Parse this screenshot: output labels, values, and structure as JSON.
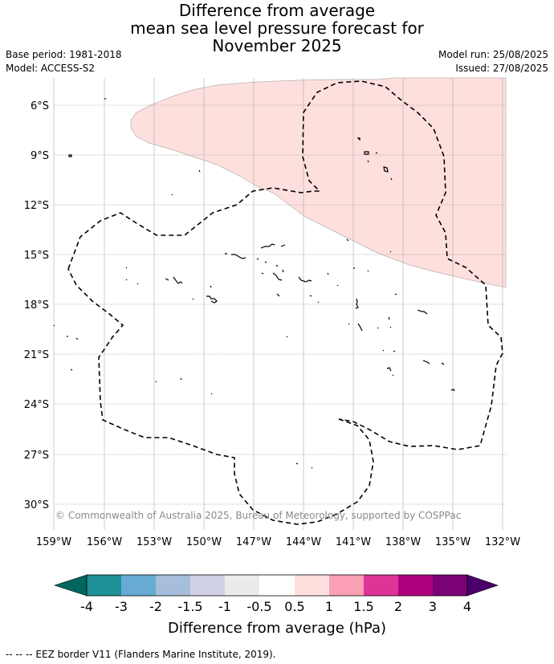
{
  "title": {
    "line1": "Difference from average",
    "line2": "mean sea level pressure forecast for",
    "line3": "November 2025"
  },
  "meta": {
    "base_period": "Base period: 1981-2018",
    "model": "Model: ACCESS-S2",
    "model_run": "Model run: 25/08/2025",
    "issued": "Issued: 27/08/2025"
  },
  "map": {
    "lat_labels": [
      "6°S",
      "9°S",
      "12°S",
      "15°S",
      "18°S",
      "21°S",
      "24°S",
      "27°S",
      "30°S"
    ],
    "lon_labels": [
      "159°W",
      "156°W",
      "153°W",
      "150°W",
      "147°W",
      "144°W",
      "141°W",
      "138°W",
      "135°W",
      "132°W"
    ],
    "copyright": "© Commonwealth of Australia 2025, Bureau of Meteorology, supported by COSPPac",
    "anomaly_fill_color": "#fde0dd",
    "eez_style": "dashed"
  },
  "colorbar": {
    "label": "Difference from average (hPa)",
    "ticks": [
      "-4",
      "-3",
      "-2",
      "-1.5",
      "-1",
      "-0.5",
      "0.5",
      "1",
      "1.5",
      "2",
      "3",
      "4"
    ],
    "colors": [
      "#00665e",
      "#1d9196",
      "#67aad2",
      "#a6bddb",
      "#d0d1e6",
      "#ebebeb",
      "#ffffff",
      "#fde0dd",
      "#fa9fb5",
      "#dd3497",
      "#ae017e",
      "#7a0177",
      "#49006a"
    ]
  },
  "footnote": "-- -- -- EEZ border V11 (Flanders Marine Institute, 2019)."
}
